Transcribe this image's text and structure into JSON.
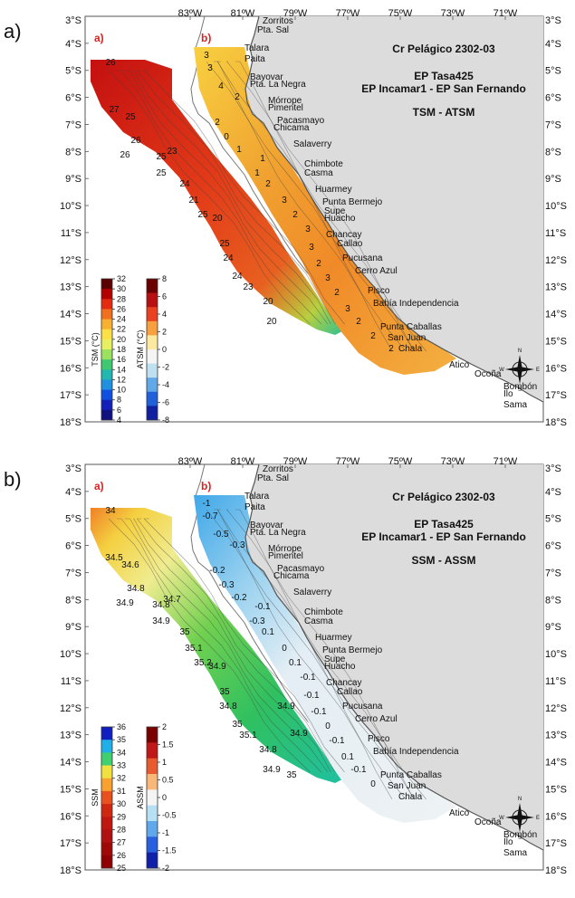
{
  "panels": [
    {
      "letter": "a)",
      "cruise": "Cr Pelágico 2302-03",
      "vessel1": "EP Tasa425",
      "vessel2": "EP Incamar1 - EP San Fernando",
      "variable": "TSM - ATSM",
      "sub_left": "a)",
      "sub_right": "b)",
      "bar1_label": "TSM (°C)",
      "bar1_ticks": [
        "32",
        "30",
        "28",
        "26",
        "24",
        "22",
        "20",
        "18",
        "16",
        "14",
        "12",
        "10",
        "8",
        "6",
        "4"
      ],
      "bar1_colors": [
        "#5a0000",
        "#b30000",
        "#e42a10",
        "#f07020",
        "#f8b030",
        "#fde048",
        "#e6f060",
        "#9ce060",
        "#40c870",
        "#20b8b0",
        "#2090e0",
        "#1050e0",
        "#1020b8",
        "#101080"
      ],
      "bar2_label": "ATSM (°C)",
      "bar2_ticks": [
        "8",
        "6",
        "4",
        "2",
        "0",
        "-2",
        "-4",
        "-6",
        "-8"
      ],
      "bar2_colors": [
        "#6a0000",
        "#b81010",
        "#e84020",
        "#f8a040",
        "#fde8a0",
        "#f4f4f4",
        "#bfe0f0",
        "#60a8e8",
        "#2060d8",
        "#1020a0"
      ],
      "contours_left": [
        "26",
        "27",
        "25",
        "26",
        "26",
        "25",
        "23",
        "25",
        "24",
        "21",
        "25",
        "20",
        "25",
        "24",
        "24",
        "23",
        "20",
        "20"
      ],
      "contours_right": [
        "3",
        "3",
        "4",
        "2",
        "2",
        "0",
        "1",
        "1",
        "1",
        "2",
        "3",
        "2",
        "3",
        "3",
        "2",
        "3",
        "2",
        "3",
        "2",
        "2",
        "2"
      ]
    },
    {
      "letter": "b)",
      "cruise": "Cr Pelágico 2302-03",
      "vessel1": "EP Tasa425",
      "vessel2": "EP Incamar1 - EP San Fernando",
      "variable": "SSM - ASSM",
      "sub_left": "a)",
      "sub_right": "b)",
      "bar1_label": "SSM",
      "bar1_ticks": [
        "36",
        "35",
        "34",
        "33",
        "32",
        "31",
        "30",
        "29",
        "28",
        "27",
        "26",
        "25"
      ],
      "bar1_colors": [
        "#1020c0",
        "#1fb0e8",
        "#40d070",
        "#f0e040",
        "#f8a030",
        "#e85020",
        "#d02810",
        "#c01810",
        "#b01010",
        "#a00808",
        "#900000"
      ],
      "bar2_label": "ASSM",
      "bar2_ticks": [
        "2",
        "1.5",
        "1",
        "0.5",
        "0",
        "-0.5",
        "-1",
        "-1.5",
        "-2"
      ],
      "bar2_colors": [
        "#7a0000",
        "#c01818",
        "#e85a30",
        "#f8b878",
        "#f4f4f4",
        "#b8e0f4",
        "#60a8ec",
        "#2860e0",
        "#1020a8"
      ],
      "contours_left": [
        "34",
        "34.5",
        "34.6",
        "34.8",
        "34.9",
        "34.8",
        "34.7",
        "34.9",
        "35",
        "35.1",
        "35.2",
        "34.9",
        "35",
        "34.8",
        "35",
        "35.1",
        "34.8",
        "34.9",
        "35",
        "34.9",
        "34.9"
      ],
      "contours_right": [
        "-1",
        "-0.7",
        "-0.5",
        "-0.3",
        "-0.2",
        "-0.3",
        "-0.2",
        "-0.1",
        "-0.3",
        "0.1",
        "0",
        "0.1",
        "-0.1",
        "-0.1",
        "-0.1",
        "0",
        "-0.1",
        "0.1",
        "-0.1",
        "0"
      ]
    }
  ],
  "lon_labels": [
    "83ºW",
    "81ºW",
    "79ºW",
    "77ºW",
    "75ºW",
    "73ºW",
    "71ºW"
  ],
  "lat_labels": [
    "3°S",
    "4°S",
    "5°S",
    "6°S",
    "7°S",
    "8°S",
    "9°S",
    "10°S",
    "11°S",
    "12°S",
    "13°S",
    "14°S",
    "15°S",
    "16°S",
    "17°S",
    "18°S"
  ],
  "places": [
    {
      "name": "Zorritos"
    },
    {
      "name": "Pta. Sal"
    },
    {
      "name": "Talara"
    },
    {
      "name": "Paita"
    },
    {
      "name": "Bayovar"
    },
    {
      "name": "Pta. La Negra"
    },
    {
      "name": "Mórrope"
    },
    {
      "name": "Pimentel"
    },
    {
      "name": "Pacasmayo"
    },
    {
      "name": "Chicama"
    },
    {
      "name": "Salaverry"
    },
    {
      "name": "Chimbote"
    },
    {
      "name": "Casma"
    },
    {
      "name": "Huarmey"
    },
    {
      "name": "Punta Bermejo"
    },
    {
      "name": "Supe"
    },
    {
      "name": "Huacho"
    },
    {
      "name": "Chancay"
    },
    {
      "name": "Callao"
    },
    {
      "name": "Pucusana"
    },
    {
      "name": "Cerro Azul"
    },
    {
      "name": "Pisco"
    },
    {
      "name": "Bahía Independencia"
    },
    {
      "name": "Punta Caballas"
    },
    {
      "name": "San Juan"
    },
    {
      "name": "Chala"
    },
    {
      "name": "Atico"
    },
    {
      "name": "Ocoña"
    },
    {
      "name": "Bombón"
    },
    {
      "name": "Ilo"
    },
    {
      "name": "Sama"
    }
  ],
  "compass": {
    "n": "N",
    "s": "S",
    "e": "E",
    "w": "W"
  }
}
